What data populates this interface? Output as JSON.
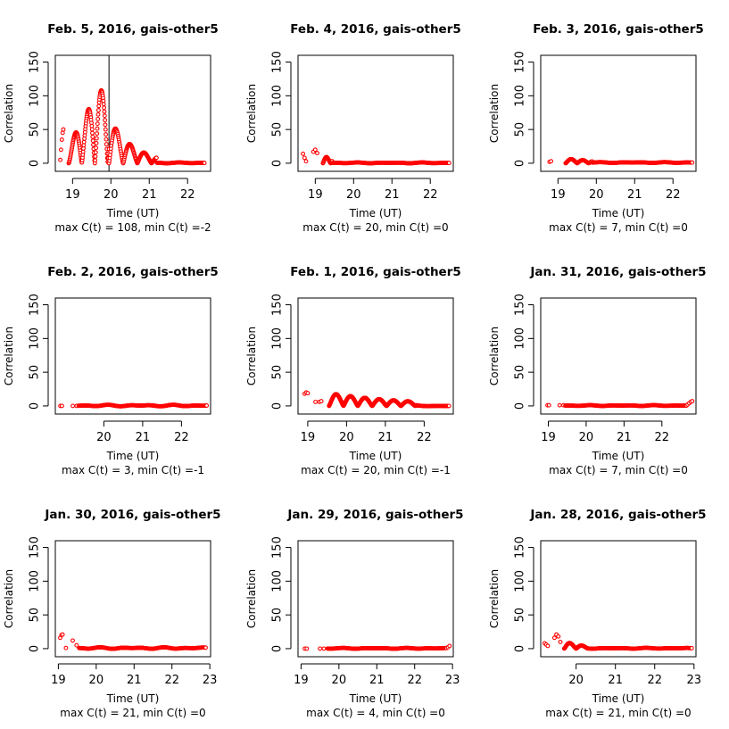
{
  "chart_data": [
    {
      "type": "scatter",
      "title": "Feb. 5, 2016, gais-other5",
      "xlabel": "Time (UT)",
      "ylabel": "Correlation",
      "subtitle": "max C(t) = 108, min C(t) =-2",
      "xlim": [
        18.55,
        22.6
      ],
      "ylim": [
        -12,
        160
      ],
      "xticks": [
        19,
        20,
        21,
        22
      ],
      "yticks": [
        0,
        50,
        100,
        150
      ],
      "vline": 19.95,
      "segments": [
        {
          "kind": "dots",
          "x": [
            18.68,
            18.7,
            18.72,
            18.74,
            18.76
          ],
          "y": [
            5,
            20,
            35,
            45,
            50
          ]
        },
        {
          "kind": "oscillation",
          "start": 18.9,
          "end": 19.95,
          "amp": 108,
          "period": 0.34,
          "damping": 0,
          "step": 0.008,
          "envelope": "grow"
        },
        {
          "kind": "oscillation",
          "start": 19.95,
          "end": 21.2,
          "amp": 68,
          "period": 0.37,
          "damping": 1.6,
          "step": 0.01
        },
        {
          "kind": "flat",
          "start": 21.2,
          "end": 22.45,
          "value": 0.5,
          "step": 0.02
        }
      ],
      "max_c": 108,
      "min_c": -2
    },
    {
      "type": "scatter",
      "title": "Feb. 4, 2016, gais-other5",
      "xlabel": "Time (UT)",
      "ylabel": "Correlation",
      "subtitle": "max C(t) = 20, min C(t) =0",
      "xlim": [
        18.55,
        22.6
      ],
      "ylim": [
        -12,
        160
      ],
      "xticks": [
        19,
        20,
        21,
        22
      ],
      "yticks": [
        0,
        50,
        100,
        150
      ],
      "segments": [
        {
          "kind": "dots",
          "x": [
            18.68,
            18.72,
            18.76,
            18.95,
            19.0,
            19.05
          ],
          "y": [
            14,
            8,
            3,
            17,
            20,
            15
          ]
        },
        {
          "kind": "oscillation",
          "start": 19.2,
          "end": 19.45,
          "amp": 12,
          "period": 0.2,
          "damping": 3,
          "step": 0.01
        },
        {
          "kind": "flat",
          "start": 19.45,
          "end": 22.5,
          "value": 0.5,
          "step": 0.02
        }
      ],
      "max_c": 20,
      "min_c": 0
    },
    {
      "type": "scatter",
      "title": "Feb. 3, 2016, gais-other5",
      "xlabel": "Time (UT)",
      "ylabel": "Correlation",
      "subtitle": "max C(t) = 7, min C(t) =0",
      "xlim": [
        18.55,
        22.6
      ],
      "ylim": [
        -12,
        160
      ],
      "xticks": [
        19,
        20,
        21,
        22
      ],
      "yticks": [
        0,
        50,
        100,
        150
      ],
      "segments": [
        {
          "kind": "dots",
          "x": [
            18.78,
            18.82
          ],
          "y": [
            2,
            3
          ]
        },
        {
          "kind": "oscillation",
          "start": 19.2,
          "end": 19.9,
          "amp": 7,
          "period": 0.3,
          "damping": 1,
          "step": 0.01
        },
        {
          "kind": "flat",
          "start": 19.9,
          "end": 22.5,
          "value": 1,
          "step": 0.02
        }
      ],
      "max_c": 7,
      "min_c": 0
    },
    {
      "type": "scatter",
      "title": "Feb. 2, 2016, gais-other5",
      "xlabel": "Time (UT)",
      "ylabel": "Correlation",
      "subtitle": "max C(t) = 3, min C(t) =-1",
      "xlim": [
        18.75,
        22.75
      ],
      "ylim": [
        -12,
        160
      ],
      "xticks": [
        20,
        21,
        22
      ],
      "yticks": [
        0,
        50,
        100,
        150
      ],
      "segments": [
        {
          "kind": "dots",
          "x": [
            18.88,
            18.92,
            19.2,
            19.3
          ],
          "y": [
            0,
            0,
            0,
            0
          ]
        },
        {
          "kind": "flat",
          "start": 19.35,
          "end": 22.65,
          "value": 0.5,
          "step": 0.02,
          "wiggle": 2
        }
      ],
      "max_c": 3,
      "min_c": -1
    },
    {
      "type": "scatter",
      "title": "Feb. 1, 2016, gais-other5",
      "xlabel": "Time (UT)",
      "ylabel": "Correlation",
      "subtitle": "max C(t) = 20, min C(t) =-1",
      "xlim": [
        18.75,
        22.75
      ],
      "ylim": [
        -12,
        160
      ],
      "xticks": [
        19,
        20,
        21,
        22
      ],
      "yticks": [
        0,
        50,
        100,
        150
      ],
      "segments": [
        {
          "kind": "dots",
          "x": [
            18.92,
            18.96,
            19.0
          ],
          "y": [
            18,
            20,
            19
          ]
        },
        {
          "kind": "dots",
          "x": [
            19.2,
            19.3,
            19.35
          ],
          "y": [
            6,
            6,
            7
          ]
        },
        {
          "kind": "oscillation",
          "start": 19.55,
          "end": 21.8,
          "amp": 19,
          "period": 0.37,
          "damping": 0.5,
          "step": 0.008
        },
        {
          "kind": "flat",
          "start": 21.8,
          "end": 22.65,
          "value": 0,
          "step": 0.02
        }
      ],
      "max_c": 20,
      "min_c": -1
    },
    {
      "type": "scatter",
      "title": "Jan. 31, 2016, gais-other5",
      "xlabel": "Time (UT)",
      "ylabel": "Correlation",
      "subtitle": "max C(t) = 7, min C(t) =0",
      "xlim": [
        18.8,
        22.9
      ],
      "ylim": [
        -12,
        160
      ],
      "xticks": [
        19,
        20,
        21,
        22
      ],
      "yticks": [
        0,
        50,
        100,
        150
      ],
      "segments": [
        {
          "kind": "dots",
          "x": [
            18.98,
            19.02,
            19.3,
            19.4
          ],
          "y": [
            1,
            1,
            1,
            1
          ]
        },
        {
          "kind": "flat",
          "start": 19.45,
          "end": 22.65,
          "value": 0.5,
          "step": 0.02
        },
        {
          "kind": "dots",
          "x": [
            22.68,
            22.72,
            22.76,
            22.8
          ],
          "y": [
            2,
            4,
            6,
            7
          ]
        }
      ],
      "max_c": 7,
      "min_c": 0
    },
    {
      "type": "scatter",
      "title": "Jan. 30, 2016, gais-other5",
      "xlabel": "Time (UT)",
      "ylabel": "Correlation",
      "subtitle": "max C(t) = 21, min C(t) =0",
      "xlim": [
        18.92,
        23.02
      ],
      "ylim": [
        -12,
        160
      ],
      "xticks": [
        19,
        20,
        21,
        22,
        23
      ],
      "yticks": [
        0,
        50,
        100,
        150
      ],
      "segments": [
        {
          "kind": "dots",
          "x": [
            19.05,
            19.08,
            19.11,
            19.2,
            19.38,
            19.48
          ],
          "y": [
            16,
            20,
            21,
            1,
            12,
            5
          ]
        },
        {
          "kind": "flat",
          "start": 19.55,
          "end": 22.9,
          "value": 0.8,
          "step": 0.02,
          "wiggle": 2
        }
      ],
      "max_c": 21,
      "min_c": 0
    },
    {
      "type": "scatter",
      "title": "Jan. 29, 2016, gais-other5",
      "xlabel": "Time (UT)",
      "ylabel": "Correlation",
      "subtitle": "max C(t) = 4, min C(t) =0",
      "xlim": [
        18.92,
        23.02
      ],
      "ylim": [
        -12,
        160
      ],
      "xticks": [
        19,
        20,
        21,
        22,
        23
      ],
      "yticks": [
        0,
        50,
        100,
        150
      ],
      "segments": [
        {
          "kind": "dots",
          "x": [
            19.1,
            19.15,
            19.5,
            19.6
          ],
          "y": [
            0,
            0,
            0,
            0
          ]
        },
        {
          "kind": "flat",
          "start": 19.7,
          "end": 22.85,
          "value": 0.4,
          "step": 0.02
        },
        {
          "kind": "dots",
          "x": [
            22.88,
            22.92
          ],
          "y": [
            2,
            4
          ]
        }
      ],
      "max_c": 4,
      "min_c": 0
    },
    {
      "type": "scatter",
      "title": "Jan. 28, 2016, gais-other5",
      "xlabel": "Time (UT)",
      "ylabel": "Correlation",
      "subtitle": "max C(t) = 21, min C(t) =0",
      "xlim": [
        19.1,
        23.05
      ],
      "ylim": [
        -12,
        160
      ],
      "xticks": [
        20,
        21,
        22,
        23
      ],
      "yticks": [
        0,
        50,
        100,
        150
      ],
      "segments": [
        {
          "kind": "dots",
          "x": [
            19.2,
            19.24,
            19.28,
            19.45,
            19.5,
            19.55,
            19.6
          ],
          "y": [
            8,
            6,
            4,
            16,
            21,
            18,
            10
          ]
        },
        {
          "kind": "oscillation",
          "start": 19.7,
          "end": 20.3,
          "amp": 11,
          "period": 0.3,
          "damping": 2,
          "step": 0.01
        },
        {
          "kind": "flat",
          "start": 20.3,
          "end": 22.95,
          "value": 0.5,
          "step": 0.02
        }
      ],
      "max_c": 21,
      "min_c": 0
    }
  ]
}
